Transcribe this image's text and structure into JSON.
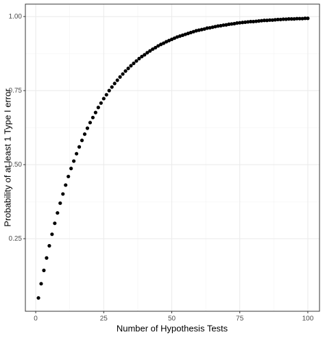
{
  "chart_data": {
    "type": "scatter",
    "x_label": "Number of Hypothesis Tests",
    "y_label": "Probability of at least 1 Type I error",
    "x": [
      1,
      2,
      3,
      4,
      5,
      6,
      7,
      8,
      9,
      10,
      11,
      12,
      13,
      14,
      15,
      16,
      17,
      18,
      19,
      20,
      21,
      22,
      23,
      24,
      25,
      26,
      27,
      28,
      29,
      30,
      31,
      32,
      33,
      34,
      35,
      36,
      37,
      38,
      39,
      40,
      41,
      42,
      43,
      44,
      45,
      46,
      47,
      48,
      49,
      50,
      51,
      52,
      53,
      54,
      55,
      56,
      57,
      58,
      59,
      60,
      61,
      62,
      63,
      64,
      65,
      66,
      67,
      68,
      69,
      70,
      71,
      72,
      73,
      74,
      75,
      76,
      77,
      78,
      79,
      80,
      81,
      82,
      83,
      84,
      85,
      86,
      87,
      88,
      89,
      90,
      91,
      92,
      93,
      94,
      95,
      96,
      97,
      98,
      99,
      100
    ],
    "values": [
      0.05,
      0.098,
      0.143,
      0.185,
      0.226,
      0.265,
      0.302,
      0.337,
      0.37,
      0.401,
      0.431,
      0.46,
      0.487,
      0.512,
      0.537,
      0.56,
      0.582,
      0.603,
      0.623,
      0.642,
      0.659,
      0.676,
      0.693,
      0.708,
      0.723,
      0.736,
      0.75,
      0.762,
      0.774,
      0.785,
      0.796,
      0.806,
      0.816,
      0.825,
      0.834,
      0.842,
      0.85,
      0.858,
      0.865,
      0.871,
      0.878,
      0.884,
      0.89,
      0.895,
      0.901,
      0.906,
      0.91,
      0.915,
      0.919,
      0.923,
      0.927,
      0.931,
      0.934,
      0.937,
      0.94,
      0.943,
      0.946,
      0.949,
      0.952,
      0.954,
      0.956,
      0.958,
      0.961,
      0.962,
      0.964,
      0.966,
      0.968,
      0.969,
      0.971,
      0.972,
      0.974,
      0.975,
      0.976,
      0.978,
      0.979,
      0.98,
      0.981,
      0.982,
      0.983,
      0.983,
      0.984,
      0.985,
      0.986,
      0.987,
      0.987,
      0.988,
      0.988,
      0.989,
      0.99,
      0.99,
      0.991,
      0.991,
      0.992,
      0.992,
      0.992,
      0.993,
      0.993,
      0.993,
      0.994,
      0.994
    ],
    "color": "#000000",
    "xlim": [
      -3.8,
      104.3
    ],
    "xticks": [
      0,
      25,
      50,
      75,
      100
    ],
    "ylim": [
      0.005,
      1.042
    ],
    "yticks": [
      {
        "value": 0.25,
        "label": "0.25"
      },
      {
        "value": 0.5,
        "label": "0.50"
      },
      {
        "value": 0.75,
        "label": "0.75"
      },
      {
        "value": 1,
        "label": "1.00"
      }
    ],
    "grid": true
  }
}
